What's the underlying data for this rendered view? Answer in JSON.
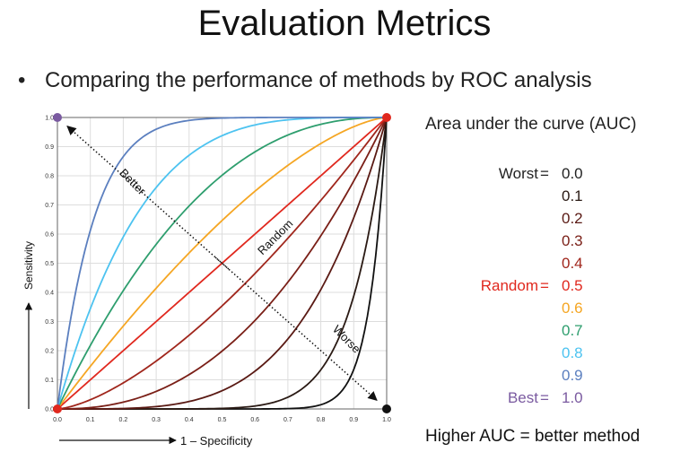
{
  "slide": {
    "title": "Evaluation Metrics",
    "bullet": "Comparing the performance of methods by ROC analysis",
    "auc_title": "Area under the curve (AUC)",
    "footer": "Higher AUC = better method"
  },
  "legend": [
    {
      "label": "Worst",
      "value": "0.0",
      "color": "#222222",
      "label_color": "#222222"
    },
    {
      "label": "",
      "value": "0.1",
      "color": "#2a1a14",
      "label_color": "#222222"
    },
    {
      "label": "",
      "value": "0.2",
      "color": "#5a1a14",
      "label_color": "#222222"
    },
    {
      "label": "",
      "value": "0.3",
      "color": "#7a1f17",
      "label_color": "#222222"
    },
    {
      "label": "",
      "value": "0.4",
      "color": "#a0261c",
      "label_color": "#222222"
    },
    {
      "label": "Random",
      "value": "0.5",
      "color": "#e0281e",
      "label_color": "#e0281e"
    },
    {
      "label": "",
      "value": "0.6",
      "color": "#f5a623",
      "label_color": "#222222"
    },
    {
      "label": "",
      "value": "0.7",
      "color": "#2e9e6e",
      "label_color": "#222222"
    },
    {
      "label": "",
      "value": "0.8",
      "color": "#4dc3f0",
      "label_color": "#222222"
    },
    {
      "label": "",
      "value": "0.9",
      "color": "#5b7fbf",
      "label_color": "#222222"
    },
    {
      "label": "Best",
      "value": "1.0",
      "color": "#7a5aa0",
      "label_color": "#7a5aa0"
    }
  ],
  "chart_data": {
    "type": "line",
    "xlabel": "1 – Specificity",
    "ylabel": "Sensitivity",
    "xlim": [
      0,
      1
    ],
    "ylim": [
      0,
      1
    ],
    "x_ticks": [
      "0.0",
      "0.1",
      "0.2",
      "0.3",
      "0.4",
      "0.5",
      "0.6",
      "0.7",
      "0.8",
      "0.9",
      "1.0"
    ],
    "y_ticks": [
      "0.0",
      "0.1",
      "0.2",
      "0.3",
      "0.4",
      "0.5",
      "0.6",
      "0.7",
      "0.8",
      "0.9",
      "1.0"
    ],
    "curves": [
      {
        "auc": 0.05,
        "color": "#111111"
      },
      {
        "auc": 0.1,
        "color": "#2a1a14"
      },
      {
        "auc": 0.2,
        "color": "#5a1a14"
      },
      {
        "auc": 0.3,
        "color": "#7a1f17"
      },
      {
        "auc": 0.4,
        "color": "#a0261c"
      },
      {
        "auc": 0.5,
        "color": "#e0281e"
      },
      {
        "auc": 0.6,
        "color": "#f5a623"
      },
      {
        "auc": 0.7,
        "color": "#2e9e6e"
      },
      {
        "auc": 0.8,
        "color": "#4dc3f0"
      },
      {
        "auc": 0.9,
        "color": "#5b7fbf"
      }
    ],
    "annotations": {
      "better": "Better",
      "random": "Random",
      "worse": "Worse"
    },
    "points": [
      {
        "x": 0,
        "y": 0,
        "color": "#e0281e"
      },
      {
        "x": 1,
        "y": 1,
        "color": "#e0281e"
      },
      {
        "x": 0,
        "y": 1,
        "color": "#7a5aa0"
      },
      {
        "x": 1,
        "y": 0,
        "color": "#111111"
      }
    ]
  }
}
